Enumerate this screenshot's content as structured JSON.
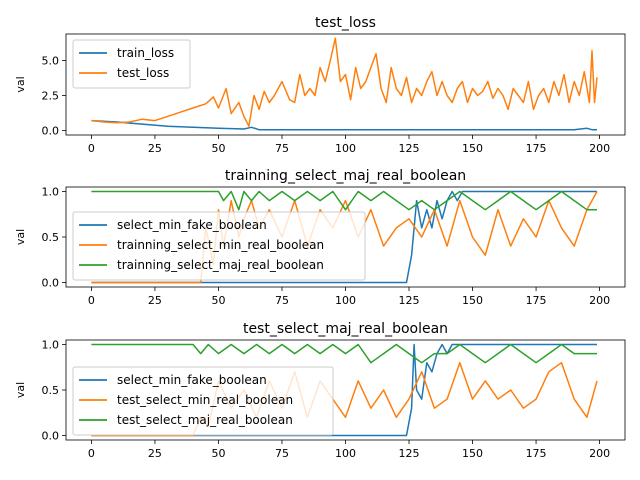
{
  "chart_data": [
    {
      "type": "line",
      "title": "test_loss",
      "ylabel": "val",
      "xlim": [
        -10,
        210
      ],
      "ylim": [
        -0.33,
        6.9
      ],
      "xticks": [
        0,
        25,
        50,
        75,
        100,
        125,
        150,
        175,
        200
      ],
      "yticks": [
        0.0,
        2.5,
        5.0
      ],
      "ytick_labels": [
        "0.0",
        "2.5",
        "5.0"
      ],
      "legend_position": "upper-left",
      "series": [
        {
          "name": "train_loss",
          "color": "#1f77b4",
          "x": [
            0,
            10,
            20,
            30,
            40,
            50,
            60,
            63,
            66,
            70,
            80,
            90,
            100,
            110,
            120,
            130,
            140,
            150,
            160,
            170,
            180,
            190,
            195,
            197,
            199
          ],
          "y": [
            0.7,
            0.6,
            0.45,
            0.3,
            0.22,
            0.15,
            0.1,
            0.22,
            0.05,
            0.05,
            0.05,
            0.04,
            0.05,
            0.04,
            0.04,
            0.04,
            0.04,
            0.04,
            0.04,
            0.04,
            0.04,
            0.04,
            0.15,
            0.05,
            0.04
          ]
        },
        {
          "name": "test_loss",
          "color": "#ff7f0e",
          "x": [
            0,
            5,
            10,
            15,
            20,
            25,
            30,
            35,
            40,
            45,
            48,
            50,
            53,
            55,
            58,
            60,
            62,
            64,
            66,
            68,
            70,
            72,
            75,
            78,
            80,
            82,
            84,
            86,
            88,
            90,
            92,
            94,
            96,
            98,
            100,
            102,
            104,
            106,
            108,
            110,
            112,
            114,
            116,
            118,
            120,
            122,
            124,
            126,
            128,
            130,
            132,
            134,
            136,
            138,
            140,
            142,
            144,
            146,
            148,
            150,
            152,
            154,
            156,
            158,
            160,
            162,
            164,
            166,
            168,
            170,
            172,
            174,
            176,
            178,
            180,
            182,
            184,
            186,
            188,
            190,
            192,
            194,
            196,
            197,
            198,
            199
          ],
          "y": [
            0.7,
            0.6,
            0.55,
            0.6,
            0.8,
            0.7,
            1.0,
            1.3,
            1.6,
            1.9,
            2.4,
            1.6,
            3.0,
            1.2,
            2.0,
            1.0,
            0.3,
            2.5,
            1.5,
            2.8,
            2.0,
            2.5,
            3.5,
            2.2,
            2.0,
            4.0,
            2.5,
            3.0,
            2.5,
            4.5,
            3.5,
            5.0,
            6.6,
            3.5,
            4.0,
            2.2,
            4.5,
            3.0,
            3.5,
            4.5,
            5.5,
            3.0,
            2.0,
            4.5,
            3.0,
            2.5,
            3.8,
            2.0,
            3.0,
            2.5,
            3.5,
            4.2,
            2.5,
            3.5,
            2.5,
            2.0,
            3.0,
            3.5,
            2.0,
            3.0,
            2.5,
            2.8,
            3.5,
            2.3,
            3.0,
            2.5,
            1.5,
            3.0,
            2.5,
            2.0,
            3.5,
            1.5,
            2.5,
            3.0,
            2.0,
            3.5,
            2.5,
            4.0,
            2.0,
            3.5,
            2.5,
            4.2,
            2.0,
            5.7,
            2.0,
            3.8
          ]
        }
      ]
    },
    {
      "type": "line",
      "title": "trainning_select_maj_real_boolean",
      "ylabel": "val",
      "xlim": [
        -10,
        210
      ],
      "ylim": [
        -0.05,
        1.05
      ],
      "xticks": [
        0,
        25,
        50,
        75,
        100,
        125,
        150,
        175,
        200
      ],
      "yticks": [
        0.0,
        0.5,
        1.0
      ],
      "ytick_labels": [
        "0.0",
        "0.5",
        "1.0"
      ],
      "legend_position": "lower-left",
      "series": [
        {
          "name": "select_min_fake_boolean",
          "color": "#1f77b4",
          "x": [
            0,
            124,
            126,
            128,
            130,
            132,
            134,
            136,
            138,
            140,
            142,
            144,
            146,
            148,
            150,
            199
          ],
          "y": [
            0.0,
            0.0,
            0.3,
            0.9,
            0.6,
            0.8,
            0.6,
            0.9,
            0.7,
            0.9,
            1.0,
            0.9,
            1.0,
            1.0,
            1.0,
            1.0
          ]
        },
        {
          "name": "trainning_select_min_real_boolean",
          "color": "#ff7f0e",
          "x": [
            0,
            43,
            45,
            48,
            50,
            52,
            55,
            58,
            60,
            63,
            66,
            70,
            75,
            80,
            85,
            90,
            95,
            100,
            105,
            110,
            115,
            120,
            125,
            130,
            135,
            140,
            145,
            150,
            155,
            160,
            165,
            170,
            175,
            180,
            185,
            190,
            195,
            199
          ],
          "y": [
            0.0,
            0.0,
            0.6,
            0.2,
            0.8,
            0.4,
            0.9,
            0.5,
            0.7,
            0.9,
            0.6,
            0.8,
            0.5,
            0.9,
            0.4,
            0.8,
            0.6,
            0.9,
            0.5,
            0.8,
            0.4,
            0.6,
            0.7,
            0.5,
            0.8,
            0.4,
            0.9,
            0.5,
            0.3,
            0.8,
            0.4,
            0.7,
            0.5,
            0.9,
            0.6,
            0.4,
            0.8,
            1.0
          ]
        },
        {
          "name": "trainning_select_maj_real_boolean",
          "color": "#2ca02c",
          "x": [
            0,
            50,
            52,
            55,
            58,
            60,
            63,
            66,
            70,
            75,
            80,
            85,
            90,
            95,
            100,
            105,
            110,
            115,
            120,
            125,
            130,
            135,
            140,
            145,
            150,
            155,
            160,
            165,
            170,
            175,
            180,
            185,
            190,
            195,
            199
          ],
          "y": [
            1.0,
            1.0,
            0.9,
            1.0,
            0.8,
            1.0,
            0.9,
            1.0,
            0.9,
            1.0,
            0.9,
            1.0,
            0.9,
            1.0,
            0.8,
            1.0,
            0.9,
            1.0,
            0.9,
            0.8,
            0.9,
            0.8,
            0.9,
            1.0,
            0.9,
            0.8,
            0.9,
            1.0,
            0.9,
            0.8,
            0.9,
            1.0,
            0.9,
            0.8,
            0.8
          ]
        }
      ]
    },
    {
      "type": "line",
      "title": "test_select_maj_real_boolean",
      "ylabel": "val",
      "xlim": [
        -10,
        210
      ],
      "ylim": [
        -0.05,
        1.05
      ],
      "xticks": [
        0,
        25,
        50,
        75,
        100,
        125,
        150,
        175,
        200
      ],
      "yticks": [
        0.0,
        0.5,
        1.0
      ],
      "ytick_labels": [
        "0.0",
        "0.5",
        "1.0"
      ],
      "legend_position": "lower-left",
      "series": [
        {
          "name": "select_min_fake_boolean",
          "color": "#1f77b4",
          "x": [
            0,
            124,
            126,
            127,
            128,
            130,
            132,
            134,
            136,
            138,
            140,
            142,
            150,
            199
          ],
          "y": [
            0.0,
            0.0,
            0.3,
            1.0,
            0.5,
            0.4,
            0.8,
            0.7,
            0.9,
            1.0,
            0.9,
            1.0,
            1.0,
            1.0
          ]
        },
        {
          "name": "test_select_min_real_boolean",
          "color": "#ff7f0e",
          "x": [
            0,
            40,
            43,
            46,
            50,
            55,
            60,
            65,
            70,
            75,
            80,
            85,
            90,
            95,
            100,
            105,
            110,
            115,
            120,
            125,
            130,
            135,
            140,
            145,
            150,
            155,
            160,
            165,
            170,
            175,
            180,
            185,
            190,
            195,
            199
          ],
          "y": [
            0.0,
            0.0,
            0.2,
            0.1,
            0.6,
            0.3,
            0.5,
            0.2,
            0.6,
            0.3,
            0.7,
            0.2,
            0.6,
            0.4,
            0.2,
            0.6,
            0.3,
            0.5,
            0.2,
            0.4,
            0.7,
            0.3,
            0.4,
            0.8,
            0.4,
            0.6,
            0.4,
            0.5,
            0.3,
            0.4,
            0.7,
            0.8,
            0.4,
            0.2,
            0.6
          ]
        },
        {
          "name": "test_select_maj_real_boolean",
          "color": "#2ca02c",
          "x": [
            0,
            40,
            43,
            46,
            50,
            55,
            60,
            65,
            70,
            75,
            80,
            85,
            90,
            95,
            100,
            105,
            110,
            115,
            120,
            125,
            130,
            135,
            140,
            145,
            150,
            155,
            160,
            165,
            170,
            175,
            180,
            185,
            190,
            195,
            199
          ],
          "y": [
            1.0,
            1.0,
            0.9,
            1.0,
            0.9,
            1.0,
            0.9,
            1.0,
            0.9,
            1.0,
            0.9,
            1.0,
            0.9,
            1.0,
            0.9,
            1.0,
            0.8,
            0.9,
            1.0,
            0.9,
            0.8,
            0.9,
            0.9,
            1.0,
            0.9,
            0.8,
            0.9,
            1.0,
            0.9,
            0.8,
            0.9,
            1.0,
            0.9,
            0.9,
            0.9
          ]
        }
      ]
    }
  ]
}
